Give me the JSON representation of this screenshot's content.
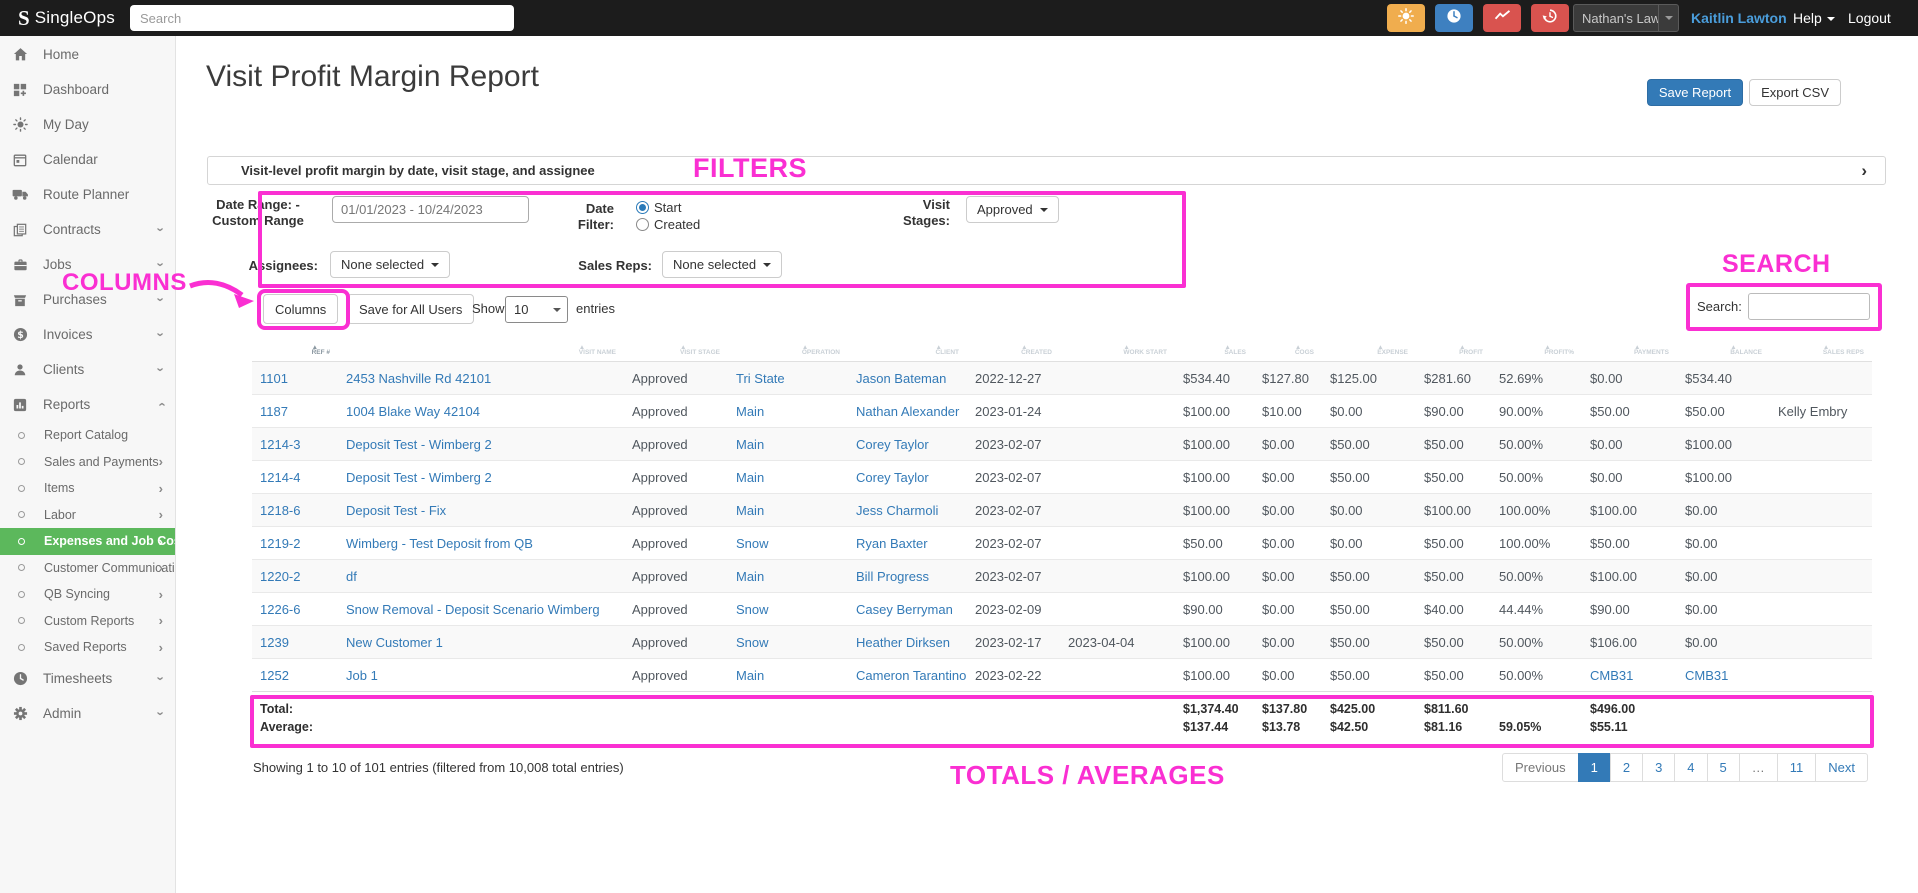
{
  "navbar": {
    "brand": "SingleOps",
    "search_placeholder": "Search",
    "icon_buttons": [
      {
        "name": "brightness",
        "color": "#f0ad4e"
      },
      {
        "name": "clock",
        "color": "#3e80c0"
      },
      {
        "name": "trend",
        "color": "#d9534f"
      },
      {
        "name": "history",
        "color": "#d9534f"
      }
    ],
    "account_selector": "Nathan's Law",
    "user_name": "Kaitlin Lawton",
    "help": "Help",
    "logout": "Logout"
  },
  "sidebar": {
    "items": [
      {
        "label": "Home",
        "icon": "home"
      },
      {
        "label": "Dashboard",
        "icon": "dashboard"
      },
      {
        "label": "My Day",
        "icon": "my-day"
      },
      {
        "label": "Calendar",
        "icon": "calendar"
      },
      {
        "label": "Route Planner",
        "icon": "route-planner"
      },
      {
        "label": "Contracts",
        "icon": "contracts",
        "chevron": "down"
      },
      {
        "label": "Jobs",
        "icon": "jobs",
        "chevron": "down"
      },
      {
        "label": "Purchases",
        "icon": "purchases",
        "chevron": "down"
      },
      {
        "label": "Invoices",
        "icon": "invoices",
        "chevron": "down"
      },
      {
        "label": "Clients",
        "icon": "clients",
        "chevron": "down"
      },
      {
        "label": "Reports",
        "icon": "reports",
        "chevron": "up"
      },
      {
        "label": "Report Catalog",
        "sub": true
      },
      {
        "label": "Sales and Payments",
        "sub": true,
        "chevron": "right"
      },
      {
        "label": "Items",
        "sub": true,
        "chevron": "right"
      },
      {
        "label": "Labor",
        "sub": true,
        "chevron": "right"
      },
      {
        "label": "Expenses and Job Costing",
        "sub": true,
        "chevron": "right",
        "active": true
      },
      {
        "label": "Customer Communication",
        "sub": true,
        "chevron": "right"
      },
      {
        "label": "QB Syncing",
        "sub": true,
        "chevron": "right"
      },
      {
        "label": "Custom Reports",
        "sub": true,
        "chevron": "right"
      },
      {
        "label": "Saved Reports",
        "sub": true,
        "chevron": "right"
      },
      {
        "label": "Timesheets",
        "icon": "timesheets",
        "chevron": "down"
      },
      {
        "label": "Admin",
        "icon": "admin",
        "chevron": "down"
      }
    ]
  },
  "page": {
    "title": "Visit Profit Margin Report",
    "save_report": "Save Report",
    "export_csv": "Export CSV"
  },
  "filter_panel": {
    "title": "Visit-level profit margin by date, visit stage, and assignee",
    "date_range_label_line1": "Date Range: -",
    "date_range_label_line2": "Custom Range",
    "date_range_value": "01/01/2023 - 10/24/2023",
    "date_filter_label": "Date Filter:",
    "date_filter_options": [
      "Start",
      "Created"
    ],
    "date_filter_selected": "Start",
    "visit_stages_label_line1": "Visit",
    "visit_stages_label_line2": "Stages:",
    "visit_stages_value": "Approved",
    "assignees_label": "Assignees:",
    "assignees_value": "None selected",
    "sales_reps_label": "Sales Reps:",
    "sales_reps_value": "None selected"
  },
  "toolbar": {
    "columns_button": "Columns",
    "save_for_all_users_button": "Save for All Users",
    "show_label": "Show",
    "page_size": "10",
    "entries_label": "entries",
    "search_label": "Search:",
    "search_value": ""
  },
  "table": {
    "columns": [
      "REF #",
      "VISIT NAME",
      "VISIT STAGE",
      "OPERATION",
      "CLIENT",
      "CREATED",
      "WORK START",
      "SALES",
      "COGS",
      "EXPENSE",
      "PROFIT",
      "PROFIT%",
      "PAYMENTS",
      "BALANCE",
      "SALES REPS"
    ],
    "link_columns": [
      0,
      1,
      3,
      4
    ],
    "rows": [
      [
        "1101",
        "2453 Nashville Rd 42101",
        "Approved",
        "Tri State",
        "Jason Bateman",
        "2022-12-27",
        "",
        "$534.40",
        "$127.80",
        "$125.00",
        "$281.60",
        "52.69%",
        "$0.00",
        "$534.40",
        ""
      ],
      [
        "1187",
        "1004 Blake Way 42104",
        "Approved",
        "Main",
        "Nathan Alexander",
        "2023-01-24",
        "",
        "$100.00",
        "$10.00",
        "$0.00",
        "$90.00",
        "90.00%",
        "$50.00",
        "$50.00",
        "Kelly Embry"
      ],
      [
        "1214-3",
        "Deposit Test - Wimberg 2",
        "Approved",
        "Main",
        "Corey Taylor",
        "2023-02-07",
        "",
        "$100.00",
        "$0.00",
        "$50.00",
        "$50.00",
        "50.00%",
        "$0.00",
        "$100.00",
        ""
      ],
      [
        "1214-4",
        "Deposit Test - Wimberg 2",
        "Approved",
        "Main",
        "Corey Taylor",
        "2023-02-07",
        "",
        "$100.00",
        "$0.00",
        "$50.00",
        "$50.00",
        "50.00%",
        "$0.00",
        "$100.00",
        ""
      ],
      [
        "1218-6",
        "Deposit Test - Fix",
        "Approved",
        "Main",
        "Jess Charmoli",
        "2023-02-07",
        "",
        "$100.00",
        "$0.00",
        "$0.00",
        "$100.00",
        "100.00%",
        "$100.00",
        "$0.00",
        ""
      ],
      [
        "1219-2",
        "Wimberg - Test Deposit from QB",
        "Approved",
        "Snow",
        "Ryan Baxter",
        "2023-02-07",
        "",
        "$50.00",
        "$0.00",
        "$0.00",
        "$50.00",
        "100.00%",
        "$50.00",
        "$0.00",
        ""
      ],
      [
        "1220-2",
        "df",
        "Approved",
        "Main",
        "Bill Progress",
        "2023-02-07",
        "",
        "$100.00",
        "$0.00",
        "$50.00",
        "$50.00",
        "50.00%",
        "$100.00",
        "$0.00",
        ""
      ],
      [
        "1226-6",
        "Snow Removal - Deposit Scenario Wimberg",
        "Approved",
        "Snow",
        "Casey Berryman",
        "2023-02-09",
        "",
        "$90.00",
        "$0.00",
        "$50.00",
        "$40.00",
        "44.44%",
        "$90.00",
        "$0.00",
        ""
      ],
      [
        "1239",
        "New Customer 1",
        "Approved",
        "Snow",
        "Heather Dirksen",
        "2023-02-17",
        "2023-04-04",
        "$100.00",
        "$0.00",
        "$50.00",
        "$50.00",
        "50.00%",
        "$106.00",
        "$0.00",
        ""
      ],
      [
        "1252",
        "Job 1",
        "Approved",
        "Main",
        "Cameron Tarantino",
        "2023-02-22",
        "",
        "$100.00",
        "$0.00",
        "$50.00",
        "$50.00",
        "50.00%",
        "CMB31",
        "CMB31",
        ""
      ]
    ],
    "extra_link_cells": [
      [
        9,
        12
      ],
      [
        9,
        13
      ]
    ],
    "total_label": "Total:",
    "average_label": "Average:",
    "totals": [
      "$1,374.40",
      "$137.80",
      "$425.00",
      "$811.60",
      "",
      "$496.00",
      ""
    ],
    "averages": [
      "$137.44",
      "$13.78",
      "$42.50",
      "$81.16",
      "59.05%",
      "$55.11",
      ""
    ]
  },
  "footer": {
    "showing_text": "Showing 1 to 10 of 101 entries (filtered from 10,008 total entries)",
    "pagination": [
      {
        "label": "Previous",
        "type": "prev"
      },
      {
        "label": "1",
        "type": "page",
        "active": true
      },
      {
        "label": "2",
        "type": "page"
      },
      {
        "label": "3",
        "type": "page"
      },
      {
        "label": "4",
        "type": "page"
      },
      {
        "label": "5",
        "type": "page"
      },
      {
        "label": "…",
        "type": "ellipsis"
      },
      {
        "label": "11",
        "type": "page"
      },
      {
        "label": "Next",
        "type": "next"
      }
    ]
  },
  "annotations": {
    "color": "#fa2fd2",
    "filters_label": "FILTERS",
    "search_label": "SEARCH",
    "columns_label": "COLUMNS",
    "totals_label": "TOTALS / AVERAGES"
  }
}
